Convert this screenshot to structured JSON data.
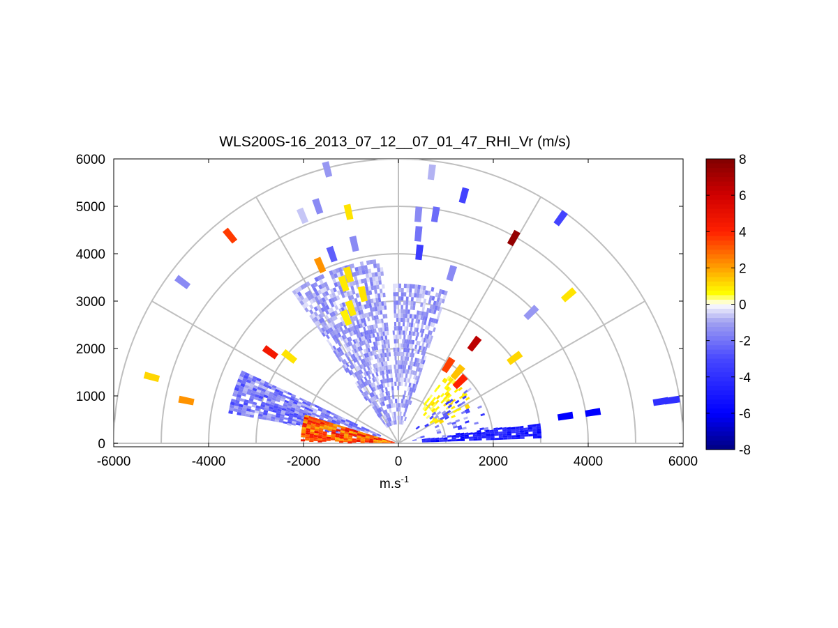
{
  "chart_data": {
    "type": "heatmap",
    "title": "WLS200S-16_2013_07_12__07_01_47_RHI_Vr (m/s)",
    "xlabel": "m.s",
    "xlabel_sup": "-1",
    "ylabel": "",
    "xlim": [
      -6000,
      6000
    ],
    "ylim": [
      0,
      6000
    ],
    "x_ticks": [
      -6000,
      -4000,
      -2000,
      0,
      2000,
      4000,
      6000
    ],
    "y_ticks": [
      0,
      1000,
      2000,
      3000,
      4000,
      5000,
      6000
    ],
    "grid": true,
    "polar_grid": {
      "range_rings": [
        1000,
        2000,
        3000,
        4000,
        5000,
        6000
      ],
      "spokes_deg": [
        0,
        30,
        60,
        90,
        120,
        150,
        180
      ]
    },
    "colorbar": {
      "range": [
        -8,
        8
      ],
      "ticks": [
        8,
        6,
        4,
        2,
        0,
        -2,
        -4,
        -6,
        -8
      ],
      "stops": [
        {
          "v": -8,
          "color": "#000080"
        },
        {
          "v": -6,
          "color": "#0000ff"
        },
        {
          "v": -3,
          "color": "#4848ff"
        },
        {
          "v": -1,
          "color": "#a0a0f0"
        },
        {
          "v": 0,
          "color": "#ffffff"
        },
        {
          "v": 0.6,
          "color": "#ffff00"
        },
        {
          "v": 2,
          "color": "#ffa000"
        },
        {
          "v": 4,
          "color": "#ff2000"
        },
        {
          "v": 6,
          "color": "#d00000"
        },
        {
          "v": 8,
          "color": "#800000"
        }
      ]
    },
    "clusters": [
      {
        "name": "left-blue-sector",
        "az": [
          155,
          170
        ],
        "r": [
          400,
          3600
        ],
        "v_min": -3.2,
        "v_max": -0.5,
        "fill": 0.85
      },
      {
        "name": "left-near-warm",
        "az": [
          163,
          178
        ],
        "r": [
          80,
          2000
        ],
        "v_min": 1.5,
        "v_max": 5,
        "fill": 0.95
      },
      {
        "name": "up-left-blue",
        "az": [
          95,
          125
        ],
        "r": [
          400,
          3900
        ],
        "v_min": -2,
        "v_max": -0.3,
        "fill": 0.75
      },
      {
        "name": "up-right-blue",
        "az": [
          72,
          92
        ],
        "r": [
          400,
          3300
        ],
        "v_min": -2,
        "v_max": -0.3,
        "fill": 0.7
      },
      {
        "name": "right-yellow-cluster",
        "az": [
          25,
          55
        ],
        "r": [
          700,
          1700
        ],
        "v_min": 0.3,
        "v_max": 1.2,
        "fill": 0.35
      },
      {
        "name": "right-near-blue",
        "az": [
          5,
          40
        ],
        "r": [
          300,
          1900
        ],
        "v_min": -4,
        "v_max": -0.5,
        "fill": 0.15
      },
      {
        "name": "low-right-blue-streak",
        "az": [
          2,
          8
        ],
        "r": [
          500,
          3000
        ],
        "v_min": -6,
        "v_max": -3.5,
        "fill": 0.9
      }
    ],
    "gates": [
      {
        "x": -5200,
        "y": 1400,
        "v": 1.2,
        "az": 165
      },
      {
        "x": -4470,
        "y": 900,
        "v": 2.2,
        "az": 168
      },
      {
        "x": -4550,
        "y": 3400,
        "v": -1.5,
        "az": 143
      },
      {
        "x": -3550,
        "y": 4380,
        "v": 3.6,
        "az": 128
      },
      {
        "x": -2700,
        "y": 1920,
        "v": 4.5,
        "az": 145
      },
      {
        "x": -2300,
        "y": 1830,
        "v": 1.0,
        "az": 140
      },
      {
        "x": -1500,
        "y": 5780,
        "v": -1.2,
        "az": 104
      },
      {
        "x": -1700,
        "y": 5000,
        "v": -1.5,
        "az": 107
      },
      {
        "x": -2020,
        "y": 4800,
        "v": -0.6,
        "az": 113
      },
      {
        "x": -1400,
        "y": 3990,
        "v": -2.5,
        "az": 109
      },
      {
        "x": -1650,
        "y": 3760,
        "v": 2.2,
        "az": 114
      },
      {
        "x": -1050,
        "y": 4880,
        "v": 1.0,
        "az": 102
      },
      {
        "x": -930,
        "y": 4210,
        "v": -1.5,
        "az": 103
      },
      {
        "x": -1050,
        "y": 3560,
        "v": 1.0,
        "az": 107
      },
      {
        "x": -1150,
        "y": 3370,
        "v": 0.9,
        "az": 109
      },
      {
        "x": -750,
        "y": 3150,
        "v": 1.0,
        "az": 104
      },
      {
        "x": -1100,
        "y": 2650,
        "v": 0.8,
        "az": 112
      },
      {
        "x": -1000,
        "y": 2850,
        "v": 0.9,
        "az": 109
      },
      {
        "x": 700,
        "y": 5720,
        "v": -0.8,
        "az": 83
      },
      {
        "x": 420,
        "y": 4830,
        "v": -1.5,
        "az": 85
      },
      {
        "x": 780,
        "y": 4830,
        "v": -2.2,
        "az": 81
      },
      {
        "x": 420,
        "y": 4420,
        "v": -2.0,
        "az": 85
      },
      {
        "x": 440,
        "y": 4030,
        "v": -3.5,
        "az": 84
      },
      {
        "x": 1380,
        "y": 5230,
        "v": -3.2,
        "az": 75
      },
      {
        "x": 2430,
        "y": 4330,
        "v": 7.5,
        "az": 61
      },
      {
        "x": 3420,
        "y": 4750,
        "v": -3.2,
        "az": 54
      },
      {
        "x": 1120,
        "y": 3590,
        "v": -1.5,
        "az": 73
      },
      {
        "x": 3590,
        "y": 3130,
        "v": 1.0,
        "az": 41
      },
      {
        "x": 2800,
        "y": 2760,
        "v": -1.2,
        "az": 45
      },
      {
        "x": 1600,
        "y": 2100,
        "v": 6.5,
        "az": 53
      },
      {
        "x": 2450,
        "y": 1800,
        "v": 1.2,
        "az": 36
      },
      {
        "x": 5770,
        "y": 910,
        "v": -4.0,
        "az": 9
      },
      {
        "x": 5530,
        "y": 880,
        "v": -4.0,
        "az": 9
      },
      {
        "x": 4100,
        "y": 650,
        "v": -6.0,
        "az": 9
      },
      {
        "x": 3520,
        "y": 570,
        "v": -6.0,
        "az": 9
      },
      {
        "x": 1250,
        "y": 1500,
        "v": 1.5,
        "az": 50
      },
      {
        "x": 1300,
        "y": 1300,
        "v": 4.0,
        "az": 45
      },
      {
        "x": 1050,
        "y": 1650,
        "v": 3.5,
        "az": 57
      }
    ]
  }
}
